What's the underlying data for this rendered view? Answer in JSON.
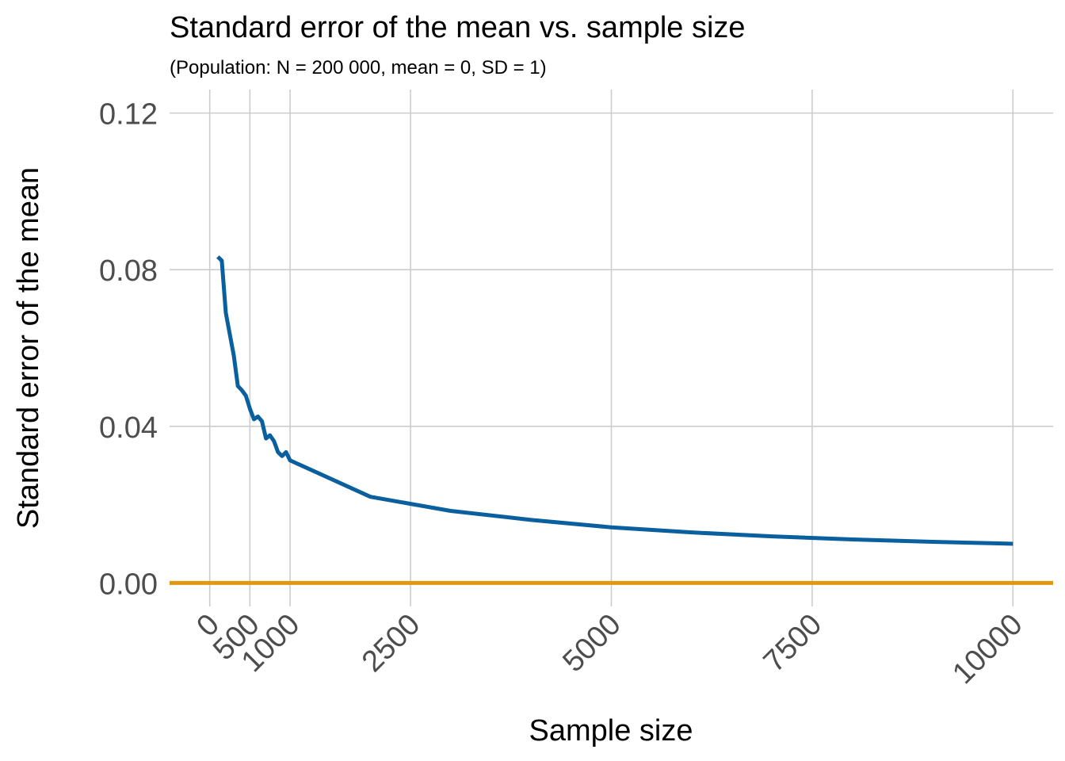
{
  "chart_data": {
    "type": "line",
    "title": "Standard error of the mean vs. sample size",
    "subtitle": "(Population: N = 200 000, mean = 0, SD = 1)",
    "xlabel": "Sample size",
    "ylabel": "Standard error of the mean",
    "xlim": [
      -500,
      10500
    ],
    "ylim": [
      -0.006,
      0.126
    ],
    "x_ticks": [
      0,
      500,
      1000,
      2500,
      5000,
      7500,
      10000
    ],
    "x_tick_labels": [
      "0",
      "500",
      "1000",
      "2500",
      "5000",
      "7500",
      "10000"
    ],
    "y_ticks": [
      0,
      0.04,
      0.08,
      0.12
    ],
    "y_tick_labels": [
      "0.00",
      "0.04",
      "0.08",
      "0.12"
    ],
    "grid": true,
    "series": [
      {
        "color": "#0a5f9e",
        "x": [
          100,
          150,
          200,
          250,
          300,
          350,
          400,
          450,
          500,
          550,
          600,
          650,
          700,
          750,
          800,
          850,
          900,
          950,
          1000,
          2000,
          3000,
          4000,
          5000,
          6000,
          7000,
          8000,
          9000,
          10000
        ],
        "y": [
          0.0833,
          0.0823,
          0.069,
          0.0635,
          0.058,
          0.0503,
          0.0492,
          0.0478,
          0.0445,
          0.0418,
          0.0425,
          0.0413,
          0.0369,
          0.0377,
          0.0362,
          0.0334,
          0.0324,
          0.0334,
          0.0313,
          0.022,
          0.0184,
          0.0161,
          0.0142,
          0.0129,
          0.0119,
          0.0111,
          0.0105,
          0.01
        ]
      }
    ],
    "reference_line": {
      "y": 0,
      "color": "#e09711"
    },
    "colors": {
      "gridline": "#cccccc",
      "tick_text": "#4d4d4d"
    }
  }
}
